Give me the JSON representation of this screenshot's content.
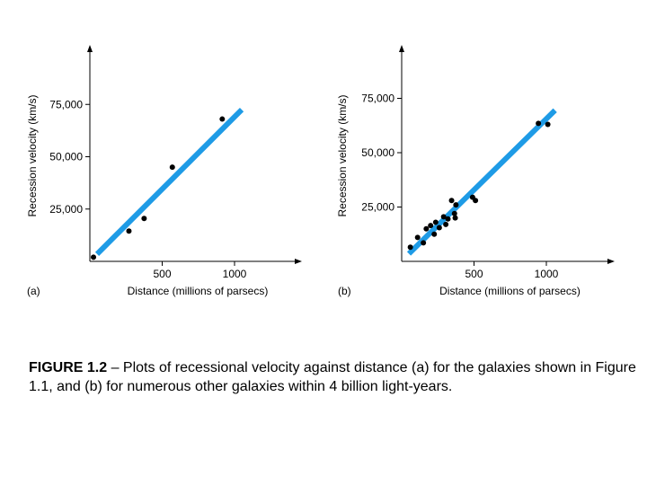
{
  "chart_data": [
    {
      "type": "scatter",
      "panel_label": "(a)",
      "xlabel": "Distance (millions of parsecs)",
      "ylabel": "Recession velocity (km/s)",
      "xlim": [
        0,
        1450
      ],
      "ylim": [
        0,
        95000
      ],
      "xticks": [
        500,
        1000
      ],
      "xtick_labels": [
        "500",
        "1000"
      ],
      "yticks": [
        25000,
        50000,
        75000
      ],
      "ytick_labels": [
        "25,000",
        "50,000",
        "75,000"
      ],
      "points": [
        {
          "x": 25,
          "y": 2000
        },
        {
          "x": 270,
          "y": 14500
        },
        {
          "x": 375,
          "y": 20500
        },
        {
          "x": 570,
          "y": 45000
        },
        {
          "x": 915,
          "y": 68000
        }
      ],
      "fit_line": {
        "x": [
          50,
          1050
        ],
        "y": [
          3500,
          72500
        ]
      },
      "line_color": "#1e9be6",
      "point_color": "#000000"
    },
    {
      "type": "scatter",
      "panel_label": "(b)",
      "xlabel": "Distance (millions of parsecs)",
      "ylabel": "Recession velocity (km/s)",
      "xlim": [
        0,
        1450
      ],
      "ylim": [
        0,
        95000
      ],
      "xticks": [
        500,
        1000
      ],
      "xtick_labels": [
        "500",
        "1000"
      ],
      "yticks": [
        25000,
        50000,
        75000
      ],
      "ytick_labels": [
        "25,000",
        "50,000",
        "75,000"
      ],
      "points": [
        {
          "x": 60,
          "y": 6500
        },
        {
          "x": 110,
          "y": 11000
        },
        {
          "x": 150,
          "y": 8500
        },
        {
          "x": 170,
          "y": 15000
        },
        {
          "x": 200,
          "y": 16500
        },
        {
          "x": 225,
          "y": 12500
        },
        {
          "x": 235,
          "y": 18000
        },
        {
          "x": 260,
          "y": 15500
        },
        {
          "x": 290,
          "y": 20500
        },
        {
          "x": 305,
          "y": 17000
        },
        {
          "x": 320,
          "y": 19500
        },
        {
          "x": 345,
          "y": 28000
        },
        {
          "x": 365,
          "y": 22000
        },
        {
          "x": 370,
          "y": 20000
        },
        {
          "x": 375,
          "y": 26000
        },
        {
          "x": 490,
          "y": 29500
        },
        {
          "x": 510,
          "y": 28000
        },
        {
          "x": 945,
          "y": 63500
        },
        {
          "x": 1010,
          "y": 63000
        }
      ],
      "fit_line": {
        "x": [
          50,
          1060
        ],
        "y": [
          3500,
          69500
        ]
      },
      "line_color": "#1e9be6",
      "point_color": "#000000"
    }
  ],
  "caption": {
    "label": "FIGURE 1.2",
    "text": " – Plots of recessional velocity against distance (a) for the galaxies shown in Figure 1.1, and (b) for numerous other galaxies within 4 billion light-years."
  }
}
